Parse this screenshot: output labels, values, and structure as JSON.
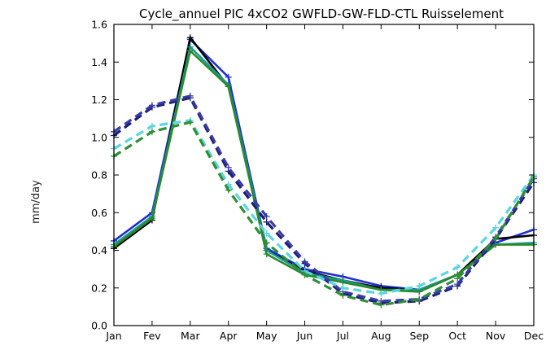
{
  "chart_data": {
    "type": "line",
    "title": "Cycle_annuel PIC 4xCO2 GWFLD-GW-FLD-CTL Ruisselement",
    "xlabel": "",
    "ylabel": "mm/day",
    "categories": [
      "Jan",
      "Fev",
      "Mar",
      "Apr",
      "May",
      "Jun",
      "Jul",
      "Aug",
      "Sep",
      "Oct",
      "Nov",
      "Dec"
    ],
    "ylim": [
      0,
      1.6
    ],
    "yticks": [
      "0.0",
      "0.2",
      "0.4",
      "0.6",
      "0.8",
      "1.0",
      "1.2",
      "1.4",
      "1.6"
    ],
    "grid": false,
    "series": [
      {
        "color": "#1f2fd0",
        "style": "solid",
        "marker": "+",
        "values": [
          0.45,
          0.6,
          1.52,
          1.32,
          0.41,
          0.3,
          0.26,
          0.21,
          0.19,
          0.27,
          0.44,
          0.51
        ]
      },
      {
        "color": "#000000",
        "style": "solid",
        "marker": "+",
        "values": [
          0.41,
          0.56,
          1.53,
          1.27,
          0.4,
          0.29,
          0.24,
          0.2,
          0.19,
          0.27,
          0.46,
          0.48
        ]
      },
      {
        "color": "#1a9a99",
        "style": "solid",
        "marker": "+",
        "values": [
          0.43,
          0.58,
          1.48,
          1.28,
          0.4,
          0.28,
          0.24,
          0.19,
          0.19,
          0.27,
          0.43,
          0.44
        ]
      },
      {
        "color": "#2a8a2a",
        "style": "solid",
        "marker": "+",
        "values": [
          0.42,
          0.57,
          1.46,
          1.27,
          0.38,
          0.27,
          0.23,
          0.19,
          0.18,
          0.27,
          0.43,
          0.43
        ]
      },
      {
        "color": "#1a2070",
        "style": "dashed",
        "marker": "+",
        "values": [
          1.01,
          1.16,
          1.21,
          0.82,
          0.55,
          0.33,
          0.17,
          0.12,
          0.13,
          0.21,
          0.46,
          0.76
        ]
      },
      {
        "color": "#3a3aa8",
        "style": "dashed",
        "marker": "+",
        "values": [
          1.03,
          1.17,
          1.22,
          0.84,
          0.58,
          0.34,
          0.18,
          0.13,
          0.14,
          0.22,
          0.47,
          0.78
        ]
      },
      {
        "color": "#5ad6e0",
        "style": "dashed",
        "marker": "+",
        "values": [
          0.94,
          1.06,
          1.09,
          0.75,
          0.49,
          0.29,
          0.2,
          0.17,
          0.21,
          0.31,
          0.52,
          0.8
        ]
      },
      {
        "color": "#2e8f36",
        "style": "dashed",
        "marker": "+",
        "values": [
          0.9,
          1.03,
          1.08,
          0.72,
          0.44,
          0.27,
          0.16,
          0.11,
          0.14,
          0.25,
          0.46,
          0.79
        ]
      }
    ]
  }
}
